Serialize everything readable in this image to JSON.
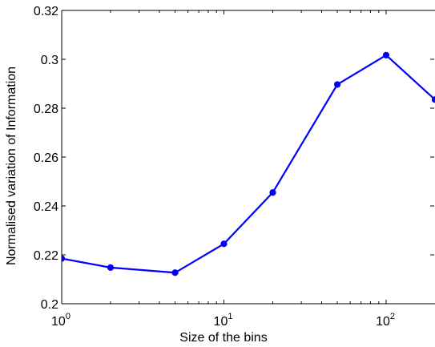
{
  "chart_data": {
    "type": "line",
    "xlabel": "Size of the bins",
    "ylabel": "Normalised variation of Information",
    "xscale": "log",
    "xlim": [
      1,
      200
    ],
    "ylim": [
      0.2,
      0.32
    ],
    "grid": false,
    "legend": "none",
    "x_ticks": [
      {
        "value": 1,
        "base": "10",
        "exp": "0"
      },
      {
        "value": 10,
        "base": "10",
        "exp": "1"
      },
      {
        "value": 100,
        "base": "10",
        "exp": "2"
      }
    ],
    "y_ticks": [
      {
        "value": 0.2,
        "label": "0.2"
      },
      {
        "value": 0.22,
        "label": "0.22"
      },
      {
        "value": 0.24,
        "label": "0.24"
      },
      {
        "value": 0.26,
        "label": "0.26"
      },
      {
        "value": 0.28,
        "label": "0.28"
      },
      {
        "value": 0.3,
        "label": "0.3"
      },
      {
        "value": 0.32,
        "label": "0.32"
      }
    ],
    "series": [
      {
        "color": "#0000ff",
        "x": [
          1,
          2,
          5,
          10,
          20,
          50,
          100,
          200
        ],
        "y": [
          0.2185,
          0.2148,
          0.2127,
          0.2245,
          0.2455,
          0.2897,
          0.3017,
          0.2835
        ]
      }
    ]
  }
}
